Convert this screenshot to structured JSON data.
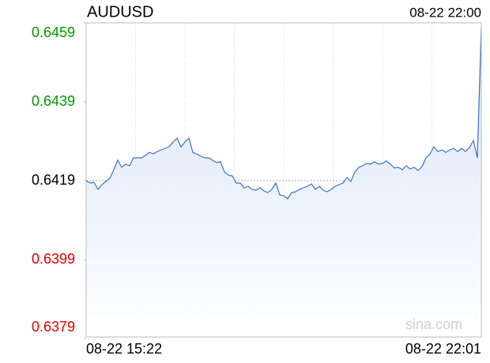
{
  "chart_data": {
    "type": "line",
    "title": "AUDUSD",
    "timestamp": "08-22 22:00",
    "watermark": "sina.com",
    "color": "#3a6fc4",
    "ylim": [
      0.6379,
      0.6459
    ],
    "yticks": [
      0.6459,
      0.6439,
      0.6419,
      0.6399,
      0.6379
    ],
    "ytick_colors": [
      "#009900",
      "#009900",
      "#000000",
      "#dd0000",
      "#dd0000"
    ],
    "ref_line": 0.6419,
    "categories": [
      "08-22 15:22",
      null,
      null,
      null,
      null,
      null,
      null,
      null,
      null,
      null,
      null,
      null,
      null,
      null,
      null,
      null,
      null,
      null,
      null,
      null,
      null,
      null,
      null,
      null,
      null,
      null,
      null,
      null,
      null,
      null,
      null,
      null,
      null,
      null,
      null,
      null,
      null,
      null,
      null,
      null,
      null,
      null,
      null,
      null,
      null,
      null,
      null,
      null,
      null,
      null,
      null,
      null,
      null,
      null,
      null,
      null,
      null,
      null,
      null,
      null,
      null,
      null,
      null,
      null,
      null,
      null,
      null,
      null,
      null,
      null,
      null,
      null,
      null,
      null,
      null,
      null,
      null,
      null,
      null,
      null,
      null,
      null,
      null,
      null,
      null,
      null,
      null,
      null,
      null,
      null,
      null,
      null,
      null,
      null,
      null,
      null,
      null,
      null,
      null,
      null,
      "08-22 22:01"
    ],
    "values": [
      0.6419,
      0.64184,
      0.64186,
      0.64168,
      0.6418,
      0.64188,
      0.64196,
      0.64218,
      0.64242,
      0.64224,
      0.64232,
      0.64228,
      0.64248,
      0.64248,
      0.64248,
      0.64254,
      0.64262,
      0.64258,
      0.64264,
      0.64268,
      0.64272,
      0.64276,
      0.64288,
      0.64298,
      0.64276,
      0.64288,
      0.64298,
      0.64262,
      0.64258,
      0.64252,
      0.64248,
      0.64248,
      0.64242,
      0.64236,
      0.64238,
      0.64212,
      0.64204,
      0.64202,
      0.64184,
      0.64184,
      0.64172,
      0.64176,
      0.64168,
      0.64166,
      0.64172,
      0.64164,
      0.6416,
      0.64168,
      0.64184,
      0.64154,
      0.64152,
      0.64144,
      0.6416,
      0.64162,
      0.64168,
      0.64172,
      0.64176,
      0.64182,
      0.64168,
      0.64176,
      0.64166,
      0.64162,
      0.64168,
      0.64176,
      0.6418,
      0.64184,
      0.64198,
      0.64188,
      0.64212,
      0.64224,
      0.64228,
      0.64234,
      0.64232,
      0.64238,
      0.64232,
      0.64234,
      0.6424,
      0.64232,
      0.64222,
      0.64224,
      0.64218,
      0.64228,
      0.6422,
      0.64224,
      0.64216,
      0.64226,
      0.64248,
      0.64258,
      0.64276,
      0.64264,
      0.64268,
      0.64262,
      0.64268,
      0.64272,
      0.64264,
      0.64272,
      0.64264,
      0.64274,
      0.64292,
      0.64248,
      0.64582
    ]
  }
}
